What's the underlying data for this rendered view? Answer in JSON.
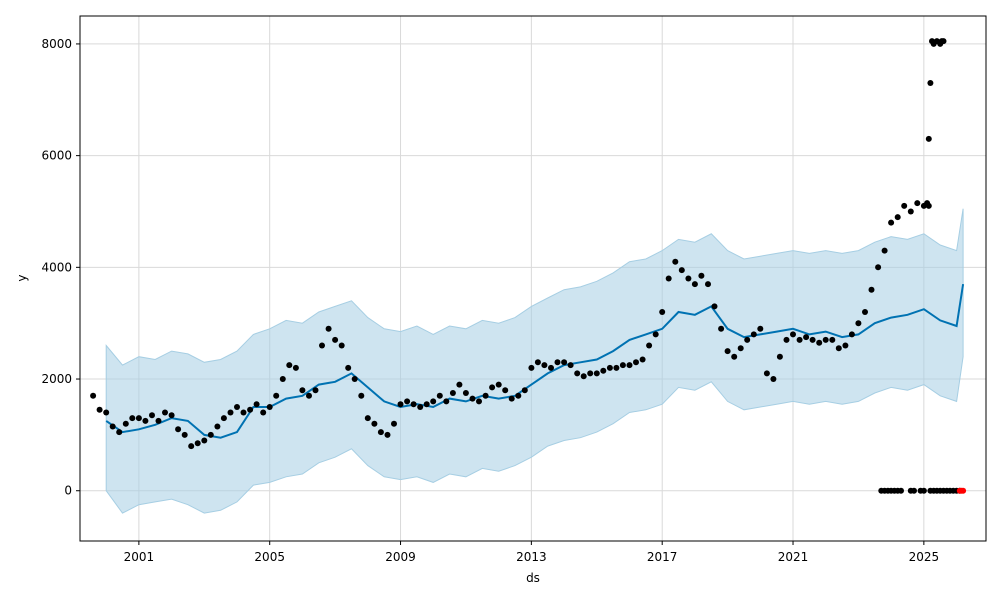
{
  "chart_data": {
    "type": "line",
    "xlabel": "ds",
    "ylabel": "y",
    "grid": true,
    "xlim": [
      1999.2,
      2026.9
    ],
    "ylim": [
      -900,
      8500
    ],
    "x_ticks": [
      2001,
      2005,
      2009,
      2013,
      2017,
      2021,
      2025
    ],
    "x_tick_labels": [
      "2001",
      "2005",
      "2009",
      "2013",
      "2017",
      "2021",
      "2025"
    ],
    "y_ticks": [
      0,
      2000,
      4000,
      6000,
      8000
    ],
    "y_tick_labels": [
      "0",
      "2000",
      "4000",
      "6000",
      "8000"
    ],
    "colors": {
      "forecast": "#0072B2",
      "interval_fill": "#a6cee3",
      "observed": "#000000",
      "highlight": "#ff0000",
      "grid": "#d9d9d9"
    },
    "forecast": {
      "x": [
        2000.0,
        2000.5,
        2001.0,
        2001.5,
        2002.0,
        2002.5,
        2003.0,
        2003.5,
        2004.0,
        2004.5,
        2005.0,
        2005.5,
        2006.0,
        2006.5,
        2007.0,
        2007.5,
        2008.0,
        2008.5,
        2009.0,
        2009.5,
        2010.0,
        2010.5,
        2011.0,
        2011.5,
        2012.0,
        2012.5,
        2013.0,
        2013.5,
        2014.0,
        2014.5,
        2015.0,
        2015.5,
        2016.0,
        2016.5,
        2017.0,
        2017.5,
        2018.0,
        2018.5,
        2019.0,
        2019.5,
        2020.0,
        2020.5,
        2021.0,
        2021.5,
        2022.0,
        2022.5,
        2023.0,
        2023.5,
        2024.0,
        2024.5,
        2025.0,
        2025.5,
        2026.0,
        2026.2
      ],
      "y": [
        1250,
        1050,
        1100,
        1180,
        1300,
        1250,
        1000,
        950,
        1050,
        1500,
        1500,
        1650,
        1700,
        1900,
        1950,
        2100,
        1850,
        1600,
        1500,
        1550,
        1500,
        1650,
        1600,
        1700,
        1650,
        1700,
        1900,
        2100,
        2250,
        2300,
        2350,
        2500,
        2700,
        2800,
        2900,
        3200,
        3150,
        3300,
        2900,
        2750,
        2800,
        2850,
        2900,
        2800,
        2850,
        2750,
        2800,
        3000,
        3100,
        3150,
        3250,
        3050,
        2950,
        3700
      ]
    },
    "interval": {
      "x": [
        2000.0,
        2000.5,
        2001.0,
        2001.5,
        2002.0,
        2002.5,
        2003.0,
        2003.5,
        2004.0,
        2004.5,
        2005.0,
        2005.5,
        2006.0,
        2006.5,
        2007.0,
        2007.5,
        2008.0,
        2008.5,
        2009.0,
        2009.5,
        2010.0,
        2010.5,
        2011.0,
        2011.5,
        2012.0,
        2012.5,
        2013.0,
        2013.5,
        2014.0,
        2014.5,
        2015.0,
        2015.5,
        2016.0,
        2016.5,
        2017.0,
        2017.5,
        2018.0,
        2018.5,
        2019.0,
        2019.5,
        2020.0,
        2020.5,
        2021.0,
        2021.5,
        2022.0,
        2022.5,
        2023.0,
        2023.5,
        2024.0,
        2024.5,
        2025.0,
        2025.5,
        2026.0,
        2026.2
      ],
      "upper": [
        2600,
        2250,
        2400,
        2350,
        2500,
        2450,
        2300,
        2350,
        2500,
        2800,
        2900,
        3050,
        3000,
        3200,
        3300,
        3400,
        3100,
        2900,
        2850,
        2950,
        2800,
        2950,
        2900,
        3050,
        3000,
        3100,
        3300,
        3450,
        3600,
        3650,
        3750,
        3900,
        4100,
        4150,
        4300,
        4500,
        4450,
        4600,
        4300,
        4150,
        4200,
        4250,
        4300,
        4250,
        4300,
        4250,
        4300,
        4450,
        4550,
        4500,
        4600,
        4400,
        4300,
        5050
      ],
      "lower": [
        0,
        -400,
        -250,
        -200,
        -150,
        -250,
        -400,
        -350,
        -200,
        100,
        150,
        250,
        300,
        500,
        600,
        750,
        450,
        250,
        200,
        250,
        150,
        300,
        250,
        400,
        350,
        450,
        600,
        800,
        900,
        950,
        1050,
        1200,
        1400,
        1450,
        1550,
        1850,
        1800,
        1950,
        1600,
        1450,
        1500,
        1550,
        1600,
        1550,
        1600,
        1550,
        1600,
        1750,
        1850,
        1800,
        1900,
        1700,
        1600,
        2400
      ]
    },
    "observed": {
      "x": [
        1999.6,
        1999.8,
        2000.0,
        2000.2,
        2000.4,
        2000.6,
        2000.8,
        2001.0,
        2001.2,
        2001.4,
        2001.6,
        2001.8,
        2002.0,
        2002.2,
        2002.4,
        2002.6,
        2002.8,
        2003.0,
        2003.2,
        2003.4,
        2003.6,
        2003.8,
        2004.0,
        2004.2,
        2004.4,
        2004.6,
        2004.8,
        2005.0,
        2005.2,
        2005.4,
        2005.6,
        2005.8,
        2006.0,
        2006.2,
        2006.4,
        2006.6,
        2006.8,
        2007.0,
        2007.2,
        2007.4,
        2007.6,
        2007.8,
        2008.0,
        2008.2,
        2008.4,
        2008.6,
        2008.8,
        2009.0,
        2009.2,
        2009.4,
        2009.6,
        2009.8,
        2010.0,
        2010.2,
        2010.4,
        2010.6,
        2010.8,
        2011.0,
        2011.2,
        2011.4,
        2011.6,
        2011.8,
        2012.0,
        2012.2,
        2012.4,
        2012.6,
        2012.8,
        2013.0,
        2013.2,
        2013.4,
        2013.6,
        2013.8,
        2014.0,
        2014.2,
        2014.4,
        2014.6,
        2014.8,
        2015.0,
        2015.2,
        2015.4,
        2015.6,
        2015.8,
        2016.0,
        2016.2,
        2016.4,
        2016.6,
        2016.8,
        2017.0,
        2017.2,
        2017.4,
        2017.6,
        2017.8,
        2018.0,
        2018.2,
        2018.4,
        2018.6,
        2018.8,
        2019.0,
        2019.2,
        2019.4,
        2019.6,
        2019.8,
        2020.0,
        2020.2,
        2020.4,
        2020.6,
        2020.8,
        2021.0,
        2021.2,
        2021.4,
        2021.6,
        2021.8,
        2022.0,
        2022.2,
        2022.4,
        2022.6,
        2022.8,
        2023.0,
        2023.2,
        2023.4,
        2023.6,
        2023.8,
        2024.0,
        2024.2,
        2024.4,
        2024.6,
        2024.8,
        2025.0,
        2025.1,
        2025.15
      ],
      "y": [
        1700,
        1450,
        1400,
        1150,
        1050,
        1200,
        1300,
        1300,
        1250,
        1350,
        1250,
        1400,
        1350,
        1100,
        1000,
        800,
        850,
        900,
        1000,
        1150,
        1300,
        1400,
        1500,
        1400,
        1450,
        1550,
        1400,
        1500,
        1700,
        2000,
        2250,
        2200,
        1800,
        1700,
        1800,
        2600,
        2900,
        2700,
        2600,
        2200,
        2000,
        1700,
        1300,
        1200,
        1050,
        1000,
        1200,
        1550,
        1600,
        1550,
        1500,
        1550,
        1600,
        1700,
        1600,
        1750,
        1900,
        1750,
        1650,
        1600,
        1700,
        1850,
        1900,
        1800,
        1650,
        1700,
        1800,
        2200,
        2300,
        2250,
        2200,
        2300,
        2300,
        2250,
        2100,
        2050,
        2100,
        2100,
        2150,
        2200,
        2200,
        2250,
        2250,
        2300,
        2350,
        2600,
        2800,
        3200,
        3800,
        4100,
        3950,
        3800,
        3700,
        3850,
        3700,
        3300,
        2900,
        2500,
        2400,
        2550,
        2700,
        2800,
        2900,
        2100,
        2000,
        2400,
        2700,
        2800,
        2700,
        2750,
        2700,
        2650,
        2700,
        2700,
        2550,
        2600,
        2800,
        3000,
        3200,
        3600,
        4000,
        4300,
        4800,
        4900,
        5100,
        5000,
        5150,
        5100,
        5150,
        5100
      ]
    },
    "outliers": {
      "x": [
        2025.15,
        2025.2,
        2025.25,
        2025.3,
        2025.4,
        2025.5,
        2025.55,
        2025.6
      ],
      "y": [
        6300,
        7300,
        8050,
        8000,
        8050,
        8000,
        8050,
        8050
      ]
    },
    "zero_points": {
      "x": [
        2023.7,
        2023.8,
        2023.9,
        2024.0,
        2024.1,
        2024.2,
        2024.3,
        2024.6,
        2024.7,
        2024.9,
        2025.0,
        2025.2,
        2025.3,
        2025.4,
        2025.5,
        2025.6,
        2025.7,
        2025.8,
        2025.9,
        2026.0,
        2026.1
      ],
      "y": [
        0,
        0,
        0,
        0,
        0,
        0,
        0,
        0,
        0,
        0,
        0,
        0,
        0,
        0,
        0,
        0,
        0,
        0,
        0,
        0,
        0
      ]
    },
    "highlight_points": {
      "x": [
        2026.1,
        2026.15,
        2026.2
      ],
      "y": [
        0,
        0,
        0
      ]
    }
  }
}
